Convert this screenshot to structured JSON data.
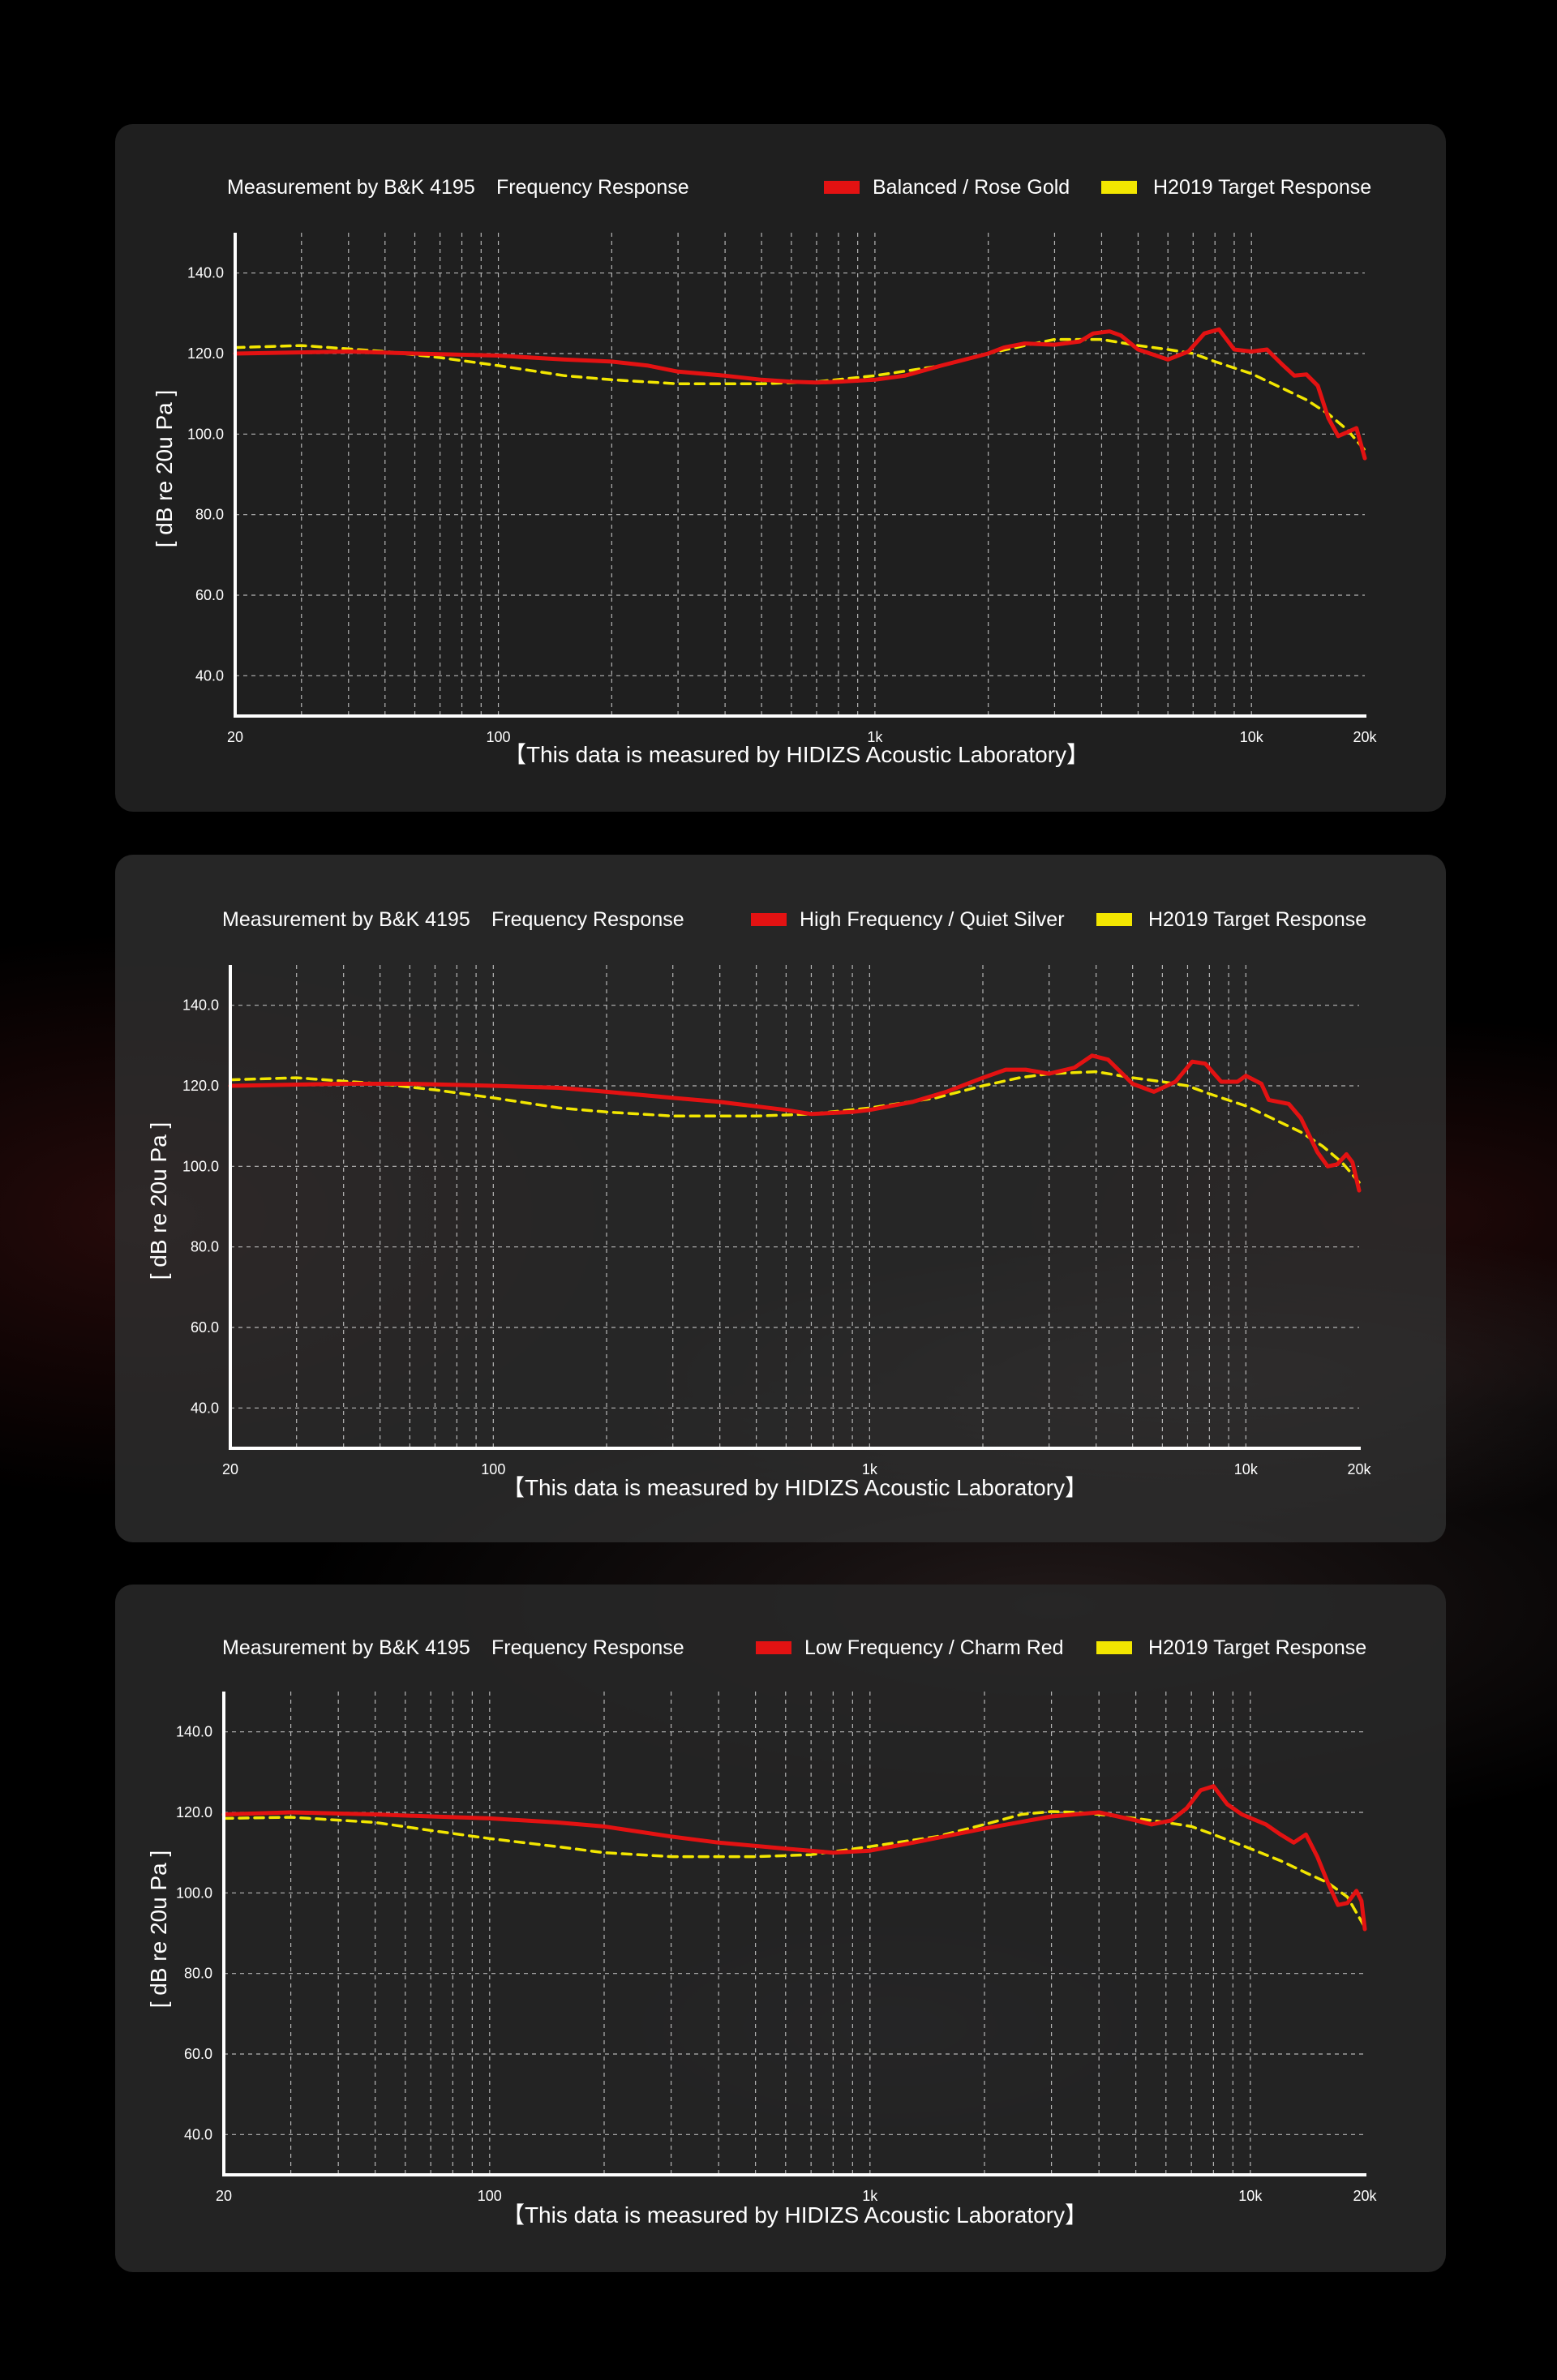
{
  "page": {
    "footer_text": "【This data is measured by HIDIZS Acoustic Laboratory】",
    "colors": {
      "measured": "#e31212",
      "target": "#f2e600",
      "background": "#000000"
    }
  },
  "chart_data": [
    {
      "type": "line",
      "title": "Measurement by B&K 4195",
      "subtitle": "Frequency Response",
      "xlabel": "",
      "ylabel": "[ dB re 20u Pa ]",
      "xscale": "log",
      "xlim": [
        20,
        20000
      ],
      "ylim": [
        30,
        150
      ],
      "x_ticks": [
        20,
        100,
        1000,
        10000,
        20000
      ],
      "x_tick_labels": [
        "20",
        "100",
        "1k",
        "10k",
        "20k"
      ],
      "y_ticks": [
        40,
        60,
        80,
        100,
        120,
        140
      ],
      "y_tick_labels": [
        "40.0",
        "60.0",
        "80.0",
        "100.0",
        "120.0",
        "140.0"
      ],
      "grid": true,
      "legend": "top-right",
      "series": [
        {
          "name": "Balanced / Rose Gold",
          "color": "#e31212",
          "style": "solid",
          "points": [
            [
              20,
              120
            ],
            [
              40,
              120.5
            ],
            [
              60,
              120
            ],
            [
              100,
              119.5
            ],
            [
              150,
              118.5
            ],
            [
              200,
              118
            ],
            [
              250,
              117
            ],
            [
              300,
              115.5
            ],
            [
              400,
              114.5
            ],
            [
              500,
              113.5
            ],
            [
              600,
              113
            ],
            [
              700,
              112.8
            ],
            [
              800,
              113
            ],
            [
              1000,
              113.5
            ],
            [
              1200,
              114.5
            ],
            [
              1500,
              117
            ],
            [
              2000,
              120
            ],
            [
              2200,
              121.5
            ],
            [
              2500,
              122.5
            ],
            [
              3000,
              122.2
            ],
            [
              3500,
              123
            ],
            [
              3800,
              125
            ],
            [
              4200,
              125.5
            ],
            [
              4500,
              124.5
            ],
            [
              5000,
              121
            ],
            [
              6000,
              118.5
            ],
            [
              6800,
              120.5
            ],
            [
              7500,
              125
            ],
            [
              8200,
              126
            ],
            [
              9000,
              121
            ],
            [
              10000,
              120.5
            ],
            [
              11000,
              121
            ],
            [
              12000,
              117.5
            ],
            [
              13000,
              114.5
            ],
            [
              14000,
              114.8
            ],
            [
              15000,
              112
            ],
            [
              16000,
              104
            ],
            [
              17000,
              99.5
            ],
            [
              18000,
              100.5
            ],
            [
              19000,
              101.5
            ],
            [
              20000,
              94
            ]
          ]
        },
        {
          "name": "H2019 Target Response",
          "color": "#f2e600",
          "style": "dashed",
          "points": [
            [
              20,
              121.5
            ],
            [
              30,
              122
            ],
            [
              50,
              120.5
            ],
            [
              70,
              119
            ],
            [
              100,
              117
            ],
            [
              150,
              114.5
            ],
            [
              200,
              113.5
            ],
            [
              300,
              112.5
            ],
            [
              500,
              112.5
            ],
            [
              700,
              113
            ],
            [
              1000,
              114.5
            ],
            [
              1500,
              117
            ],
            [
              2000,
              120
            ],
            [
              2500,
              122
            ],
            [
              3000,
              123.5
            ],
            [
              4000,
              123.5
            ],
            [
              5000,
              122
            ],
            [
              6000,
              121
            ],
            [
              7000,
              120
            ],
            [
              8000,
              118
            ],
            [
              10000,
              115
            ],
            [
              12000,
              111.5
            ],
            [
              14000,
              108.5
            ],
            [
              16000,
              105
            ],
            [
              18000,
              101
            ],
            [
              20000,
              96
            ]
          ]
        }
      ]
    },
    {
      "type": "line",
      "title": "Measurement by B&K 4195",
      "subtitle": "Frequency Response",
      "xlabel": "",
      "ylabel": "[ dB re 20u Pa ]",
      "xscale": "log",
      "xlim": [
        20,
        20000
      ],
      "ylim": [
        30,
        150
      ],
      "x_ticks": [
        20,
        100,
        1000,
        10000,
        20000
      ],
      "x_tick_labels": [
        "20",
        "100",
        "1k",
        "10k",
        "20k"
      ],
      "y_ticks": [
        40,
        60,
        80,
        100,
        120,
        140
      ],
      "y_tick_labels": [
        "40.0",
        "60.0",
        "80.0",
        "100.0",
        "120.0",
        "140.0"
      ],
      "grid": true,
      "legend": "top-right",
      "series": [
        {
          "name": "High Frequency / Quiet Silver",
          "color": "#e31212",
          "style": "solid",
          "points": [
            [
              20,
              120
            ],
            [
              40,
              120.5
            ],
            [
              60,
              120.5
            ],
            [
              100,
              120
            ],
            [
              150,
              119.5
            ],
            [
              200,
              118.5
            ],
            [
              300,
              117
            ],
            [
              400,
              116
            ],
            [
              600,
              114
            ],
            [
              700,
              113
            ],
            [
              900,
              113.5
            ],
            [
              1000,
              114
            ],
            [
              1300,
              116
            ],
            [
              1600,
              118.5
            ],
            [
              2000,
              122
            ],
            [
              2300,
              124
            ],
            [
              2600,
              124
            ],
            [
              3000,
              123
            ],
            [
              3500,
              124.5
            ],
            [
              3900,
              127.5
            ],
            [
              4300,
              126.5
            ],
            [
              5000,
              120.5
            ],
            [
              5700,
              118.5
            ],
            [
              6500,
              121
            ],
            [
              7200,
              126
            ],
            [
              7800,
              125.5
            ],
            [
              8600,
              121
            ],
            [
              9500,
              121
            ],
            [
              10000,
              122.5
            ],
            [
              11000,
              120.5
            ],
            [
              11500,
              116.5
            ],
            [
              13000,
              115.5
            ],
            [
              14000,
              112
            ],
            [
              15500,
              103.5
            ],
            [
              16500,
              100
            ],
            [
              17500,
              100.5
            ],
            [
              18500,
              103
            ],
            [
              19200,
              101
            ],
            [
              20000,
              94
            ]
          ]
        },
        {
          "name": "H2019 Target Response",
          "color": "#f2e600",
          "style": "dashed",
          "points": [
            [
              20,
              121.5
            ],
            [
              30,
              122
            ],
            [
              50,
              120.5
            ],
            [
              70,
              119
            ],
            [
              100,
              117
            ],
            [
              150,
              114.5
            ],
            [
              200,
              113.5
            ],
            [
              300,
              112.5
            ],
            [
              500,
              112.5
            ],
            [
              700,
              113
            ],
            [
              1000,
              114.5
            ],
            [
              1500,
              117
            ],
            [
              2000,
              120
            ],
            [
              2500,
              122
            ],
            [
              3000,
              123
            ],
            [
              4000,
              123.5
            ],
            [
              5000,
              122
            ],
            [
              6000,
              121
            ],
            [
              7000,
              120
            ],
            [
              8000,
              118
            ],
            [
              10000,
              115
            ],
            [
              12000,
              111.5
            ],
            [
              14000,
              108.5
            ],
            [
              16000,
              105
            ],
            [
              18000,
              101
            ],
            [
              20000,
              96
            ]
          ]
        }
      ]
    },
    {
      "type": "line",
      "title": "Measurement by B&K 4195",
      "subtitle": "Frequency Response",
      "xlabel": "",
      "ylabel": "[ dB re 20u Pa ]",
      "xscale": "log",
      "xlim": [
        20,
        20000
      ],
      "ylim": [
        30,
        150
      ],
      "x_ticks": [
        20,
        100,
        1000,
        10000,
        20000
      ],
      "x_tick_labels": [
        "20",
        "100",
        "1k",
        "10k",
        "20k"
      ],
      "y_ticks": [
        40,
        60,
        80,
        100,
        120,
        140
      ],
      "y_tick_labels": [
        "40.0",
        "60.0",
        "80.0",
        "100.0",
        "120.0",
        "140.0"
      ],
      "grid": true,
      "legend": "top-right",
      "series": [
        {
          "name": "Low Frequency / Charm Red",
          "color": "#e31212",
          "style": "solid",
          "points": [
            [
              20,
              119.5
            ],
            [
              30,
              120
            ],
            [
              50,
              119.5
            ],
            [
              70,
              119
            ],
            [
              100,
              118.5
            ],
            [
              150,
              117.5
            ],
            [
              200,
              116.5
            ],
            [
              300,
              114
            ],
            [
              400,
              112.5
            ],
            [
              600,
              111
            ],
            [
              800,
              110
            ],
            [
              1000,
              110.5
            ],
            [
              1300,
              112.5
            ],
            [
              2000,
              116
            ],
            [
              3000,
              119
            ],
            [
              4000,
              120
            ],
            [
              5000,
              118
            ],
            [
              5500,
              117
            ],
            [
              6200,
              118
            ],
            [
              6800,
              121
            ],
            [
              7400,
              125.5
            ],
            [
              8000,
              126.5
            ],
            [
              8700,
              122
            ],
            [
              9500,
              119.5
            ],
            [
              11000,
              117
            ],
            [
              12000,
              114.5
            ],
            [
              13000,
              112.5
            ],
            [
              14000,
              114.5
            ],
            [
              15000,
              109
            ],
            [
              16000,
              102.5
            ],
            [
              17000,
              97
            ],
            [
              18000,
              97.5
            ],
            [
              19000,
              100.5
            ],
            [
              19600,
              98
            ],
            [
              20000,
              91
            ]
          ]
        },
        {
          "name": "H2019 Target Response",
          "color": "#f2e600",
          "style": "dashed",
          "points": [
            [
              20,
              118.5
            ],
            [
              30,
              118.8
            ],
            [
              50,
              117.5
            ],
            [
              70,
              115.5
            ],
            [
              100,
              113.5
            ],
            [
              150,
              111.5
            ],
            [
              200,
              110
            ],
            [
              300,
              109
            ],
            [
              500,
              109
            ],
            [
              700,
              109.5
            ],
            [
              1000,
              111.5
            ],
            [
              1500,
              114
            ],
            [
              2000,
              117
            ],
            [
              2500,
              119.5
            ],
            [
              3000,
              120.2
            ],
            [
              3500,
              120
            ],
            [
              4000,
              119.5
            ],
            [
              5000,
              118.5
            ],
            [
              6000,
              117.5
            ],
            [
              7000,
              116.5
            ],
            [
              8000,
              114.5
            ],
            [
              10000,
              111
            ],
            [
              12000,
              108
            ],
            [
              14000,
              105
            ],
            [
              16000,
              102.5
            ],
            [
              18000,
              99
            ],
            [
              20000,
              91.5
            ]
          ]
        }
      ]
    }
  ]
}
